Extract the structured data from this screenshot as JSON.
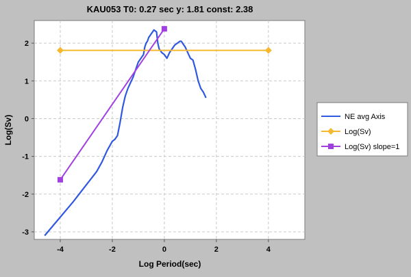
{
  "chart_data": {
    "type": "line",
    "title": "KAU053 T0: 0.27 sec  y: 1.81 const: 2.38",
    "xlabel": "Log Period(sec)",
    "ylabel": "Log(Sv)",
    "xlim": [
      -5,
      5.4
    ],
    "ylim": [
      -3.2,
      2.6
    ],
    "x_ticks": [
      -4,
      -2,
      0,
      2,
      4
    ],
    "x_tick_labels": [
      "-4",
      "-2",
      "0",
      "2",
      "4"
    ],
    "y_ticks": [
      -3,
      -2,
      -1,
      0,
      1,
      2
    ],
    "y_tick_labels": [
      "-3",
      "-2",
      "-1",
      "0",
      "1",
      "2"
    ],
    "grid": true,
    "legend_position": "right",
    "series": [
      {
        "name": "NE avg Axis",
        "color": "#3057e0",
        "marker": "none",
        "points": [
          [
            -4.6,
            -3.1
          ],
          [
            -3.5,
            -2.2
          ],
          [
            -2.6,
            -1.4
          ],
          [
            -2.4,
            -1.15
          ],
          [
            -2.2,
            -0.85
          ],
          [
            -2.0,
            -0.6
          ],
          [
            -1.9,
            -0.55
          ],
          [
            -1.8,
            -0.45
          ],
          [
            -1.7,
            -0.1
          ],
          [
            -1.6,
            0.3
          ],
          [
            -1.5,
            0.6
          ],
          [
            -1.4,
            0.8
          ],
          [
            -1.3,
            0.95
          ],
          [
            -1.2,
            1.1
          ],
          [
            -1.1,
            1.3
          ],
          [
            -1.0,
            1.5
          ],
          [
            -0.9,
            1.6
          ],
          [
            -0.8,
            1.7
          ],
          [
            -0.75,
            1.9
          ],
          [
            -0.7,
            2.0
          ],
          [
            -0.65,
            2.05
          ],
          [
            -0.6,
            2.15
          ],
          [
            -0.55,
            2.2
          ],
          [
            -0.5,
            2.25
          ],
          [
            -0.45,
            2.3
          ],
          [
            -0.4,
            2.35
          ],
          [
            -0.3,
            2.3
          ],
          [
            -0.25,
            2.0
          ],
          [
            -0.2,
            1.85
          ],
          [
            -0.1,
            1.75
          ],
          [
            0.0,
            1.7
          ],
          [
            0.1,
            1.6
          ],
          [
            0.2,
            1.75
          ],
          [
            0.3,
            1.85
          ],
          [
            0.4,
            1.95
          ],
          [
            0.5,
            2.0
          ],
          [
            0.6,
            2.05
          ],
          [
            0.65,
            2.05
          ],
          [
            0.7,
            2.0
          ],
          [
            0.8,
            1.9
          ],
          [
            0.9,
            1.75
          ],
          [
            1.0,
            1.6
          ],
          [
            1.1,
            1.55
          ],
          [
            1.2,
            1.3
          ],
          [
            1.3,
            1.0
          ],
          [
            1.4,
            0.8
          ],
          [
            1.5,
            0.7
          ],
          [
            1.6,
            0.55
          ]
        ]
      },
      {
        "name": "Log(Sv)",
        "color": "#f5b82e",
        "marker": "diamond",
        "points": [
          [
            -4.0,
            1.81
          ],
          [
            4.0,
            1.81
          ]
        ]
      },
      {
        "name": "Log(Sv) slope=1",
        "color": "#a040e0",
        "marker": "square",
        "points": [
          [
            -4.0,
            -1.62
          ],
          [
            0.0,
            2.38
          ]
        ]
      }
    ]
  }
}
